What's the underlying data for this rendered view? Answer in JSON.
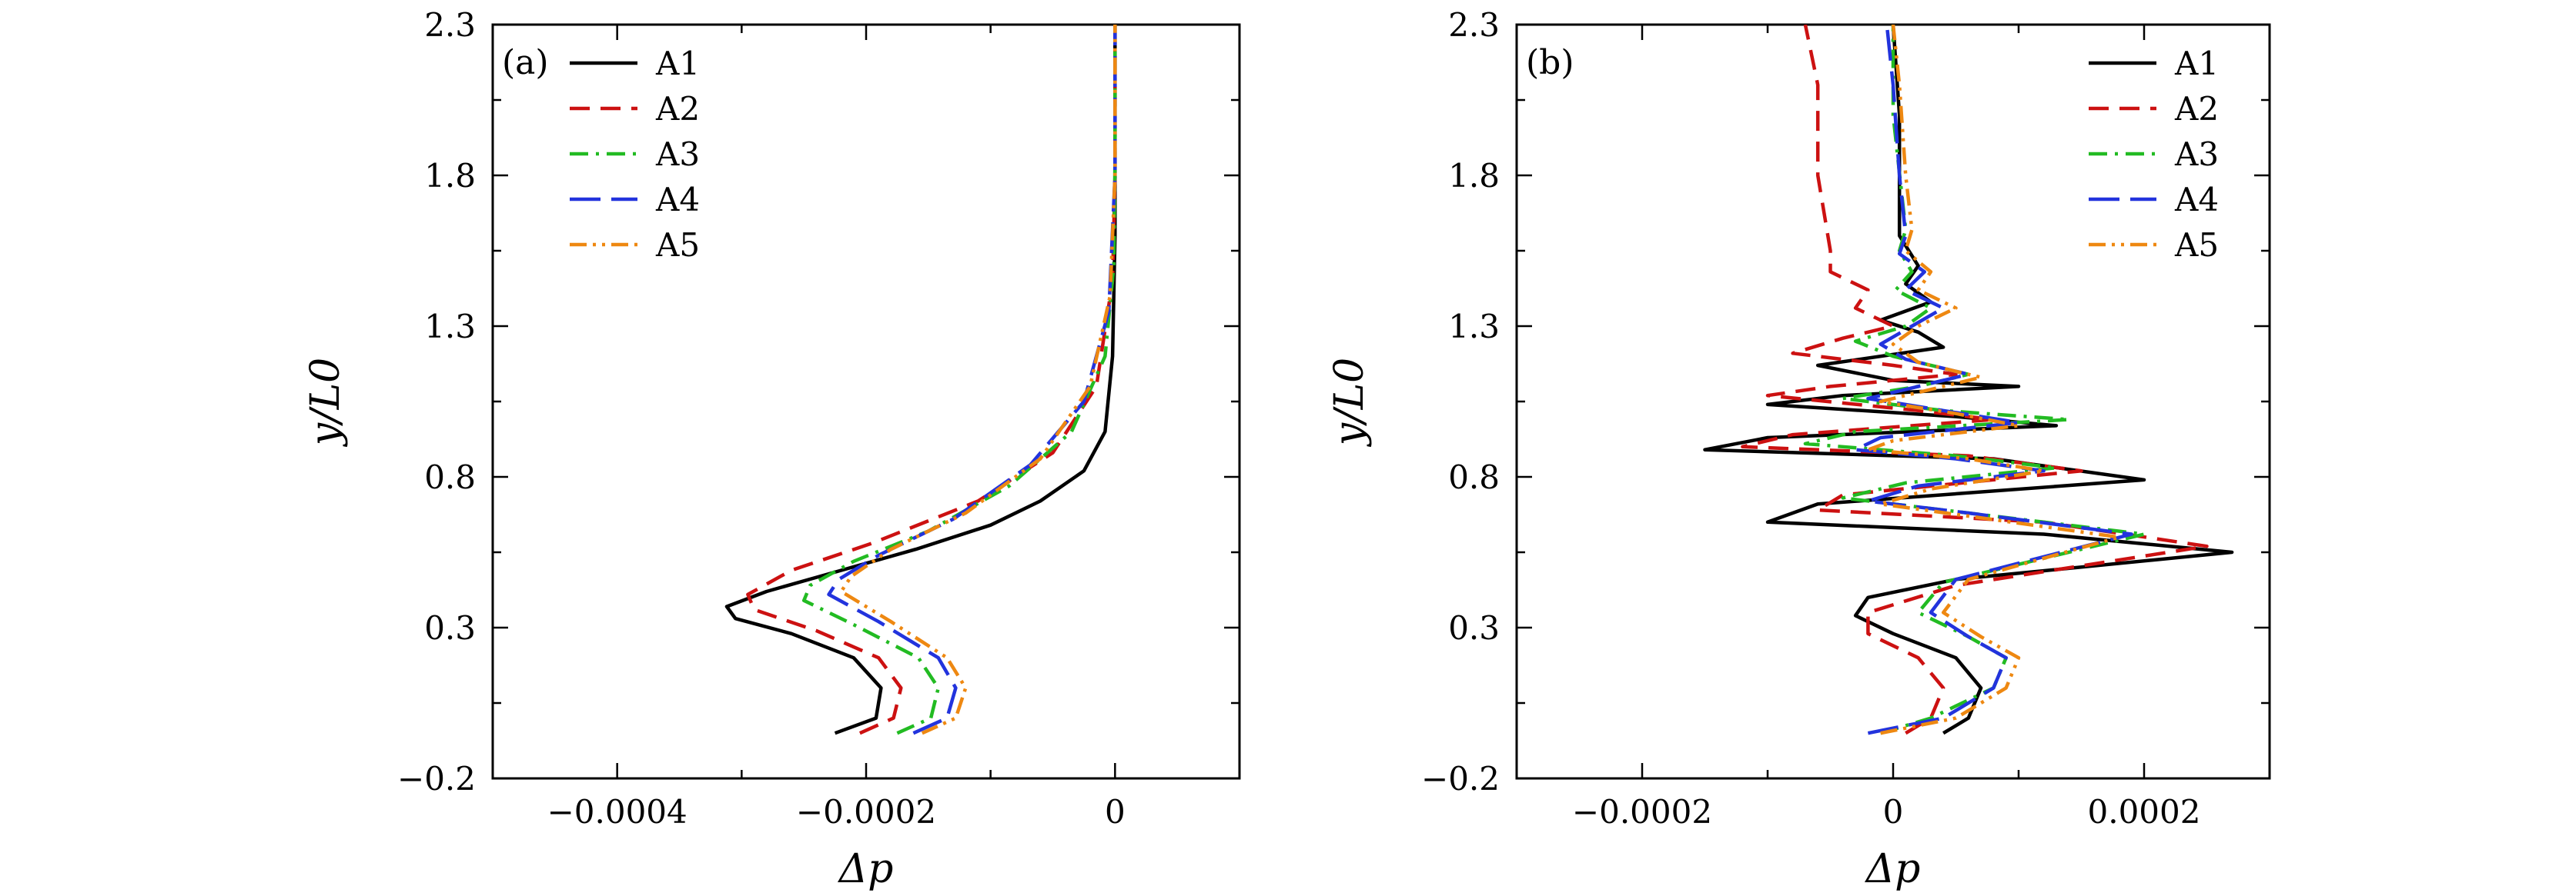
{
  "chart_data": [
    {
      "type": "line",
      "panel_label": "(a)",
      "xlabel": "Δp",
      "ylabel": "y/L0",
      "xlim": [
        -0.0005,
        0.0001
      ],
      "ylim": [
        -0.2,
        2.3
      ],
      "xticks": [
        -0.0004,
        -0.0002,
        0
      ],
      "xtick_labels": [
        "−0.0004",
        "−0.0002",
        "0"
      ],
      "yticks": [
        -0.2,
        0.3,
        0.8,
        1.3,
        1.8,
        2.3
      ],
      "ytick_labels": [
        "−0.2",
        "0.3",
        "0.8",
        "1.3",
        "1.8",
        "2.3"
      ],
      "legend_position": "top-left",
      "grid": false,
      "series": [
        {
          "name": "A1",
          "color": "#000000",
          "dash": "solid",
          "x": [
            -0.000225,
            -0.000192,
            -0.000188,
            -0.00021,
            -0.00026,
            -0.000305,
            -0.000312,
            -0.00028,
            -0.00022,
            -0.00016,
            -0.0001,
            -6e-05,
            -2.5e-05,
            -8e-06,
            -2e-06,
            0,
            0
          ],
          "y": [
            -0.05,
            0.0,
            0.1,
            0.2,
            0.28,
            0.33,
            0.37,
            0.42,
            0.49,
            0.56,
            0.64,
            0.72,
            0.82,
            0.95,
            1.2,
            1.6,
            2.3
          ]
        },
        {
          "name": "A2",
          "color": "#cc1111",
          "dash": "dashed",
          "x": [
            -0.000205,
            -0.000178,
            -0.000172,
            -0.00019,
            -0.00024,
            -0.00029,
            -0.000295,
            -0.00026,
            -0.000195,
            -0.00011,
            -5e-05,
            -1.5e-05,
            -2e-06,
            0,
            0
          ],
          "y": [
            -0.05,
            0.0,
            0.1,
            0.2,
            0.29,
            0.36,
            0.41,
            0.49,
            0.58,
            0.72,
            0.88,
            1.1,
            1.45,
            1.8,
            2.3
          ]
        },
        {
          "name": "A3",
          "color": "#22bb22",
          "dash": "dashdot",
          "x": [
            -0.000175,
            -0.000148,
            -0.000142,
            -0.000158,
            -0.00021,
            -0.00025,
            -0.000245,
            -0.00021,
            -0.00015,
            -8.5e-05,
            -3.5e-05,
            -8e-06,
            -1e-06,
            0,
            0
          ],
          "y": [
            -0.05,
            0.0,
            0.1,
            0.2,
            0.31,
            0.39,
            0.44,
            0.52,
            0.62,
            0.77,
            0.95,
            1.2,
            1.5,
            1.85,
            2.3
          ]
        },
        {
          "name": "A4",
          "color": "#2233dd",
          "dash": "longdash",
          "x": [
            -0.000162,
            -0.000135,
            -0.000128,
            -0.000142,
            -0.00019,
            -0.00023,
            -0.000222,
            -0.00019,
            -0.00013,
            -6.8e-05,
            -2.5e-05,
            -5e-06,
            0,
            0
          ],
          "y": [
            -0.05,
            0.0,
            0.1,
            0.2,
            0.32,
            0.41,
            0.46,
            0.54,
            0.66,
            0.84,
            1.05,
            1.35,
            1.8,
            2.3
          ]
        },
        {
          "name": "A5",
          "color": "#ee8811",
          "dash": "dashdotdot",
          "x": [
            -0.000155,
            -0.000128,
            -0.00012,
            -0.000135,
            -0.00018,
            -0.00022,
            -0.000212,
            -0.00018,
            -0.00012,
            -6e-05,
            -2e-05,
            -4e-06,
            0,
            0
          ],
          "y": [
            -0.05,
            0.0,
            0.1,
            0.2,
            0.32,
            0.42,
            0.47,
            0.56,
            0.68,
            0.86,
            1.1,
            1.4,
            1.8,
            2.3
          ]
        }
      ]
    },
    {
      "type": "line",
      "panel_label": "(b)",
      "xlabel": "Δp",
      "ylabel": "y/L0",
      "xlim": [
        -0.0003,
        0.0003
      ],
      "ylim": [
        -0.2,
        2.3
      ],
      "xticks": [
        -0.0002,
        0,
        0.0002
      ],
      "xtick_labels": [
        "−0.0002",
        "0",
        "0.0002"
      ],
      "yticks": [
        -0.2,
        0.3,
        0.8,
        1.3,
        1.8,
        2.3
      ],
      "ytick_labels": [
        "−0.2",
        "0.3",
        "0.8",
        "1.3",
        "1.8",
        "2.3"
      ],
      "legend_position": "top-right",
      "grid": false,
      "series": [
        {
          "name": "A1",
          "color": "#000000",
          "dash": "solid",
          "x": [
            4e-05,
            6e-05,
            7e-05,
            5e-05,
            0.0,
            -3e-05,
            -2e-05,
            5e-05,
            0.00027,
            0.00012,
            -0.0001,
            -6e-05,
            0.0002,
            8e-05,
            -0.00015,
            -0.0001,
            0.00013,
            5e-05,
            -0.0001,
            -4e-05,
            0.0001,
            0.0,
            -6e-05,
            4e-05,
            2e-05,
            -1e-05,
            3e-05,
            1e-05,
            2e-05,
            5e-06,
            5e-06,
            0.0
          ],
          "y": [
            -0.05,
            0.0,
            0.1,
            0.2,
            0.28,
            0.34,
            0.4,
            0.46,
            0.55,
            0.61,
            0.65,
            0.71,
            0.79,
            0.86,
            0.89,
            0.93,
            0.97,
            1.0,
            1.04,
            1.07,
            1.1,
            1.12,
            1.17,
            1.23,
            1.28,
            1.32,
            1.38,
            1.44,
            1.5,
            1.6,
            2.0,
            2.3
          ]
        },
        {
          "name": "A2",
          "color": "#cc1111",
          "dash": "dashed",
          "x": [
            1e-05,
            3e-05,
            4e-05,
            2e-05,
            -2e-05,
            -2e-05,
            5e-05,
            0.00025,
            0.00012,
            -6e-05,
            -4e-05,
            0.00015,
            6e-05,
            -0.00012,
            -8e-05,
            8e-05,
            2e-05,
            -0.0001,
            -5e-05,
            5e-05,
            0.0,
            -8e-05,
            -4e-05,
            0.0,
            -3e-05,
            -2e-05,
            -5e-05,
            -5e-05,
            -6e-05,
            -6e-05,
            -7e-05
          ],
          "y": [
            -0.05,
            0.0,
            0.1,
            0.2,
            0.28,
            0.35,
            0.44,
            0.57,
            0.65,
            0.69,
            0.74,
            0.82,
            0.87,
            0.9,
            0.94,
            0.99,
            1.02,
            1.07,
            1.1,
            1.14,
            1.17,
            1.21,
            1.26,
            1.3,
            1.36,
            1.42,
            1.48,
            1.55,
            1.8,
            2.1,
            2.3
          ]
        },
        {
          "name": "A3",
          "color": "#22bb22",
          "dash": "dashdot",
          "x": [
            -1e-05,
            3e-05,
            8e-05,
            9e-05,
            6e-05,
            2e-05,
            4e-05,
            0.0002,
            6e-05,
            -4e-05,
            1e-05,
            0.00013,
            5e-05,
            -7e-05,
            -3e-05,
            0.00014,
            4e-05,
            -4e-05,
            2e-05,
            6e-05,
            0.0,
            -3e-05,
            1e-05,
            3e-05,
            2e-06,
            1.5e-05,
            5e-06,
            1e-05,
            0.0,
            0.0
          ],
          "y": [
            -0.05,
            0.0,
            0.1,
            0.2,
            0.27,
            0.35,
            0.45,
            0.61,
            0.68,
            0.73,
            0.78,
            0.83,
            0.87,
            0.91,
            0.95,
            0.99,
            1.02,
            1.06,
            1.1,
            1.14,
            1.2,
            1.25,
            1.3,
            1.36,
            1.42,
            1.48,
            1.55,
            1.62,
            2.0,
            2.3
          ]
        },
        {
          "name": "A4",
          "color": "#2233dd",
          "dash": "longdash",
          "x": [
            -2e-05,
            4e-05,
            8e-05,
            9e-05,
            6e-05,
            3e-05,
            5e-05,
            0.00019,
            6e-05,
            -2e-05,
            2e-05,
            0.00012,
            5e-05,
            -3e-05,
            -1e-05,
            0.0001,
            4e-05,
            -2e-05,
            2e-05,
            6e-05,
            1e-05,
            -1e-05,
            1.5e-05,
            4e-05,
            1e-05,
            2.5e-05,
            5e-06,
            1e-05,
            5e-06,
            0.0,
            -5e-06
          ],
          "y": [
            -0.05,
            0.0,
            0.1,
            0.2,
            0.27,
            0.35,
            0.46,
            0.61,
            0.68,
            0.72,
            0.77,
            0.82,
            0.86,
            0.89,
            0.93,
            0.98,
            1.02,
            1.06,
            1.1,
            1.14,
            1.19,
            1.24,
            1.3,
            1.36,
            1.42,
            1.48,
            1.54,
            1.6,
            1.8,
            2.1,
            2.3
          ]
        },
        {
          "name": "A5",
          "color": "#ee8811",
          "dash": "dashdotdot",
          "x": [
            -1e-05,
            5e-05,
            9e-05,
            0.0001,
            7e-05,
            4e-05,
            6e-05,
            0.00018,
            6e-05,
            -1e-05,
            3e-05,
            0.00012,
            6e-05,
            -2e-05,
            0.0,
            0.0001,
            5e-05,
            -1e-05,
            3e-05,
            7e-05,
            2e-05,
            0.0,
            2e-05,
            5e-05,
            2e-05,
            3e-05,
            1e-05,
            1.5e-05,
            1e-05,
            5e-06,
            0.0
          ],
          "y": [
            -0.05,
            0.0,
            0.1,
            0.2,
            0.27,
            0.35,
            0.46,
            0.6,
            0.67,
            0.71,
            0.76,
            0.82,
            0.86,
            0.89,
            0.92,
            0.97,
            1.01,
            1.05,
            1.09,
            1.13,
            1.18,
            1.24,
            1.3,
            1.36,
            1.42,
            1.48,
            1.55,
            1.62,
            1.8,
            2.1,
            2.3
          ]
        }
      ]
    }
  ]
}
